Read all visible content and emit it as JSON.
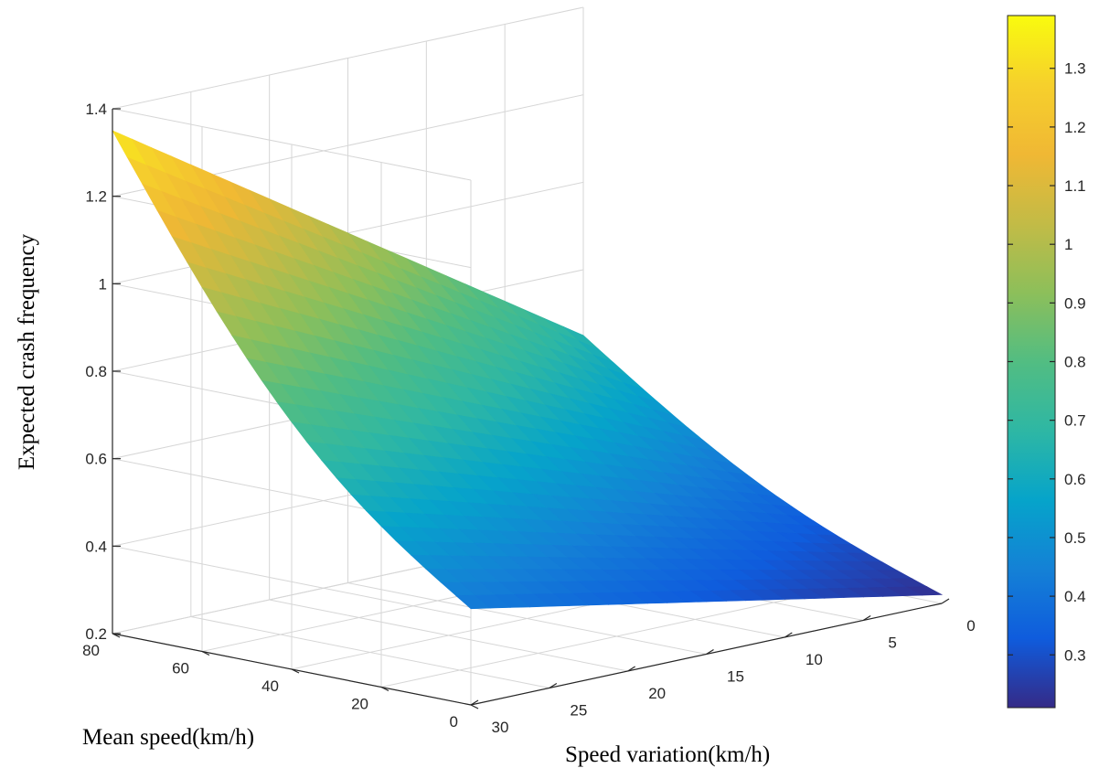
{
  "chart_data": {
    "type": "surface3d",
    "title": "",
    "xlabel": "Speed variation(km/h)",
    "ylabel": "Mean speed(km/h)",
    "zlabel": "Expected crash frequency",
    "x_ticks": [
      "0",
      "5",
      "10",
      "15",
      "20",
      "25",
      "30"
    ],
    "y_ticks": [
      "0",
      "20",
      "40",
      "60",
      "80"
    ],
    "z_ticks": [
      "0.2",
      "0.4",
      "0.6",
      "0.8",
      "1",
      "1.2",
      "1.4"
    ],
    "xlim": [
      0,
      30
    ],
    "ylim": [
      0,
      80
    ],
    "zlim": [
      0.2,
      1.4
    ],
    "colorbar_ticks": [
      "0.3",
      "0.4",
      "0.5",
      "0.6",
      "0.7",
      "0.8",
      "0.9",
      "1",
      "1.1",
      "1.2",
      "1.3"
    ],
    "colorbar_range": [
      0.21,
      1.39
    ],
    "colormap": "parula",
    "surface_corners": [
      {
        "speed_variation": 30,
        "mean_speed": 80,
        "crash_frequency": 1.35
      },
      {
        "speed_variation": 0,
        "mean_speed": 80,
        "crash_frequency": 0.65
      },
      {
        "speed_variation": 30,
        "mean_speed": 0,
        "crash_frequency": 0.42
      },
      {
        "speed_variation": 0,
        "mean_speed": 0,
        "crash_frequency": 0.22
      }
    ],
    "grid": true
  }
}
